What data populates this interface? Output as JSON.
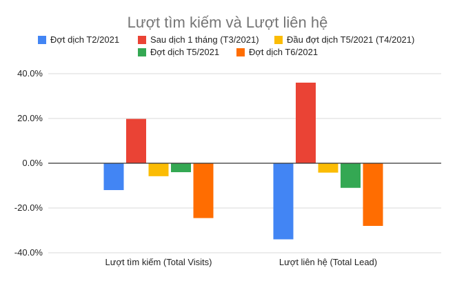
{
  "chart_data": {
    "type": "bar",
    "title": "Lượt tìm kiếm và Lượt liên hệ",
    "categories": [
      "Lượt tìm kiếm (Total Visits)",
      "Lượt liên hệ (Total Lead)"
    ],
    "series": [
      {
        "name": "Đợt dịch T2/2021",
        "color": "#4285F4",
        "values": [
          -12.0,
          -34.0
        ]
      },
      {
        "name": "Sau dịch 1 tháng (T3/2021)",
        "color": "#EA4335",
        "values": [
          19.8,
          36.0
        ]
      },
      {
        "name": "Đầu đợt dịch T5/2021 (T4/2021)",
        "color": "#FBBC04",
        "values": [
          -5.8,
          -4.2
        ]
      },
      {
        "name": "Đợt dịch T5/2021",
        "color": "#34A853",
        "values": [
          -4.0,
          -11.0
        ]
      },
      {
        "name": "Đợt dịch T6/2021",
        "color": "#FF6D01",
        "values": [
          -24.5,
          -28.0
        ]
      }
    ],
    "ylim": [
      -40,
      40
    ],
    "yticks": [
      40,
      20,
      0,
      -20,
      -40
    ],
    "ytick_labels": [
      "40.0%",
      "20.0%",
      "0.0%",
      "-20.0%",
      "-40.0%"
    ],
    "grid": true,
    "legend_position": "top"
  }
}
